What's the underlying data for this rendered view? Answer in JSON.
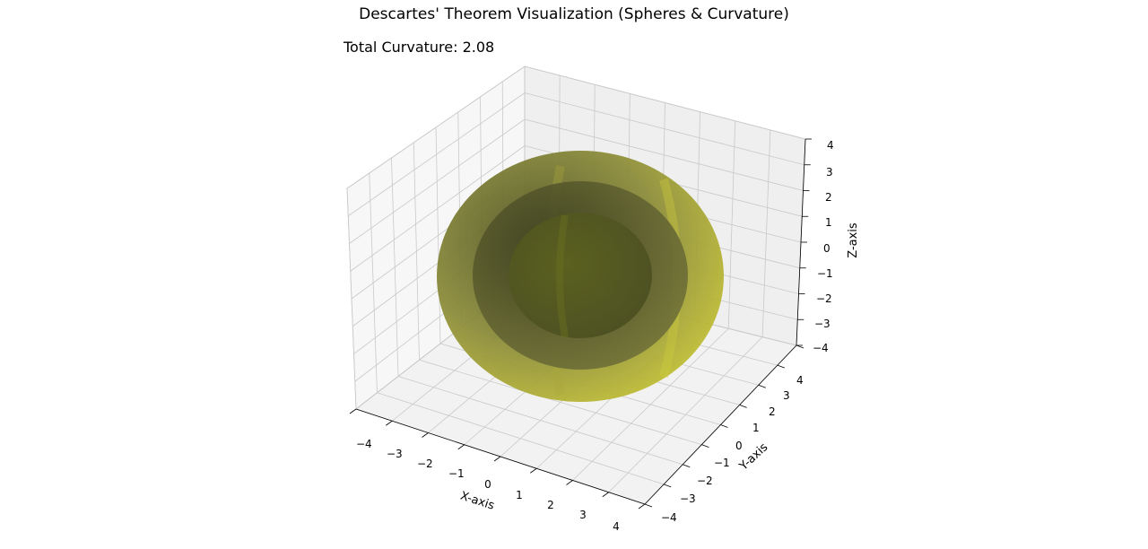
{
  "chart_data": {
    "type": "surface3d",
    "title": "Descartes' Theorem Visualization (Spheres & Curvature)",
    "annotation": "Total Curvature: 2.08",
    "xlabel": "X-axis",
    "ylabel": "Y-axis",
    "zlabel": "Z-axis",
    "xlim": [
      -4,
      4
    ],
    "ylim": [
      -4,
      4
    ],
    "zlim": [
      -4,
      4
    ],
    "xticks": [
      "−4",
      "−3",
      "−2",
      "−1",
      "0",
      "1",
      "2",
      "3",
      "4"
    ],
    "yticks": [
      "−4",
      "−3",
      "−2",
      "−1",
      "0",
      "1",
      "2",
      "3",
      "4"
    ],
    "zticks": [
      "−4",
      "−3",
      "−2",
      "−1",
      "0",
      "1",
      "2",
      "3",
      "4"
    ],
    "grid": true,
    "spheres": [
      {
        "center": [
          0,
          0,
          0
        ],
        "radius": 4,
        "color": "#c8c832"
      },
      {
        "center": [
          0,
          0,
          0
        ],
        "radius": 3,
        "color": "#7a7a2a"
      },
      {
        "center": [
          0,
          0,
          0
        ],
        "radius": 2,
        "color": "#5a5e1e"
      }
    ]
  }
}
